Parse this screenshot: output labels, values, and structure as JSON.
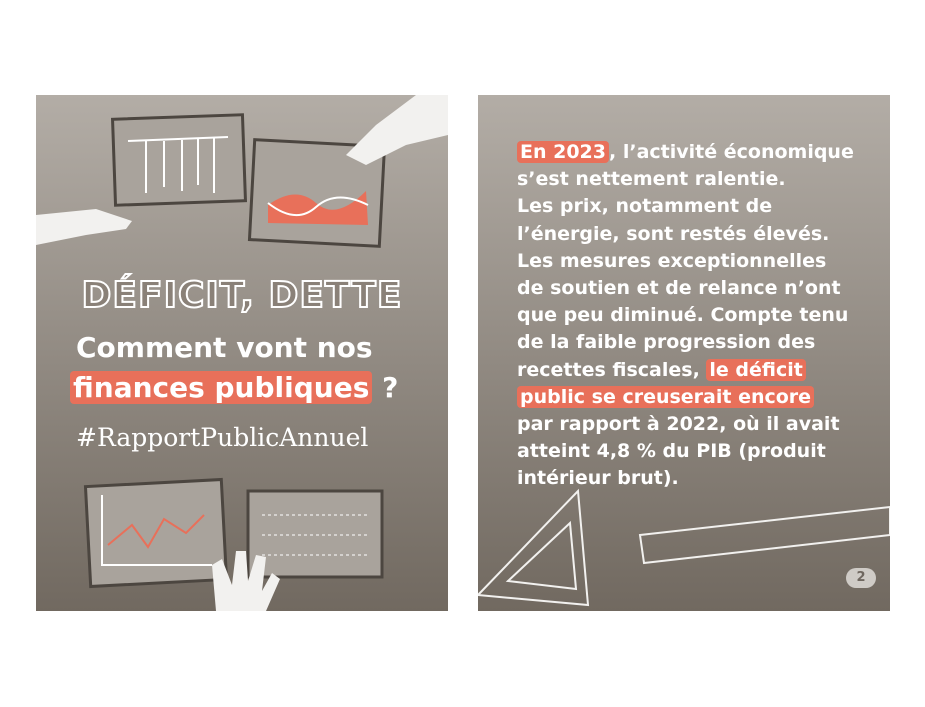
{
  "left": {
    "title": "DÉFICIT, DETTE",
    "subtitle_line1": "Comment vont nos",
    "subtitle_highlight": "finances publiques",
    "subtitle_end": "?",
    "hashtag": "#RapportPublicAnnuel"
  },
  "right": {
    "page_number": "2",
    "lines": [
      [
        {
          "text": "En 2023",
          "highlight": true
        },
        {
          "text": ", l’activité économique"
        }
      ],
      [
        {
          "text": "s’est nettement ralentie."
        }
      ],
      [
        {
          "text": "Les prix, notamment de"
        }
      ],
      [
        {
          "text": "l’énergie, sont restés élevés."
        }
      ],
      [
        {
          "text": "Les mesures exceptionnelles"
        }
      ],
      [
        {
          "text": "de soutien et de relance n’ont"
        }
      ],
      [
        {
          "text": "que peu diminué. Compte tenu"
        }
      ],
      [
        {
          "text": "de la faible progression des"
        }
      ],
      [
        {
          "text": "recettes fiscales, "
        },
        {
          "text": "le déficit",
          "highlight": true
        }
      ],
      [
        {
          "text": "public se creuserait encore",
          "highlight": true
        }
      ],
      [
        {
          "text": "par rapport à 2022, où il avait"
        }
      ],
      [
        {
          "text": "atteint 4,8 % du PIB (produit"
        }
      ],
      [
        {
          "text": "intérieur brut)."
        }
      ]
    ]
  }
}
